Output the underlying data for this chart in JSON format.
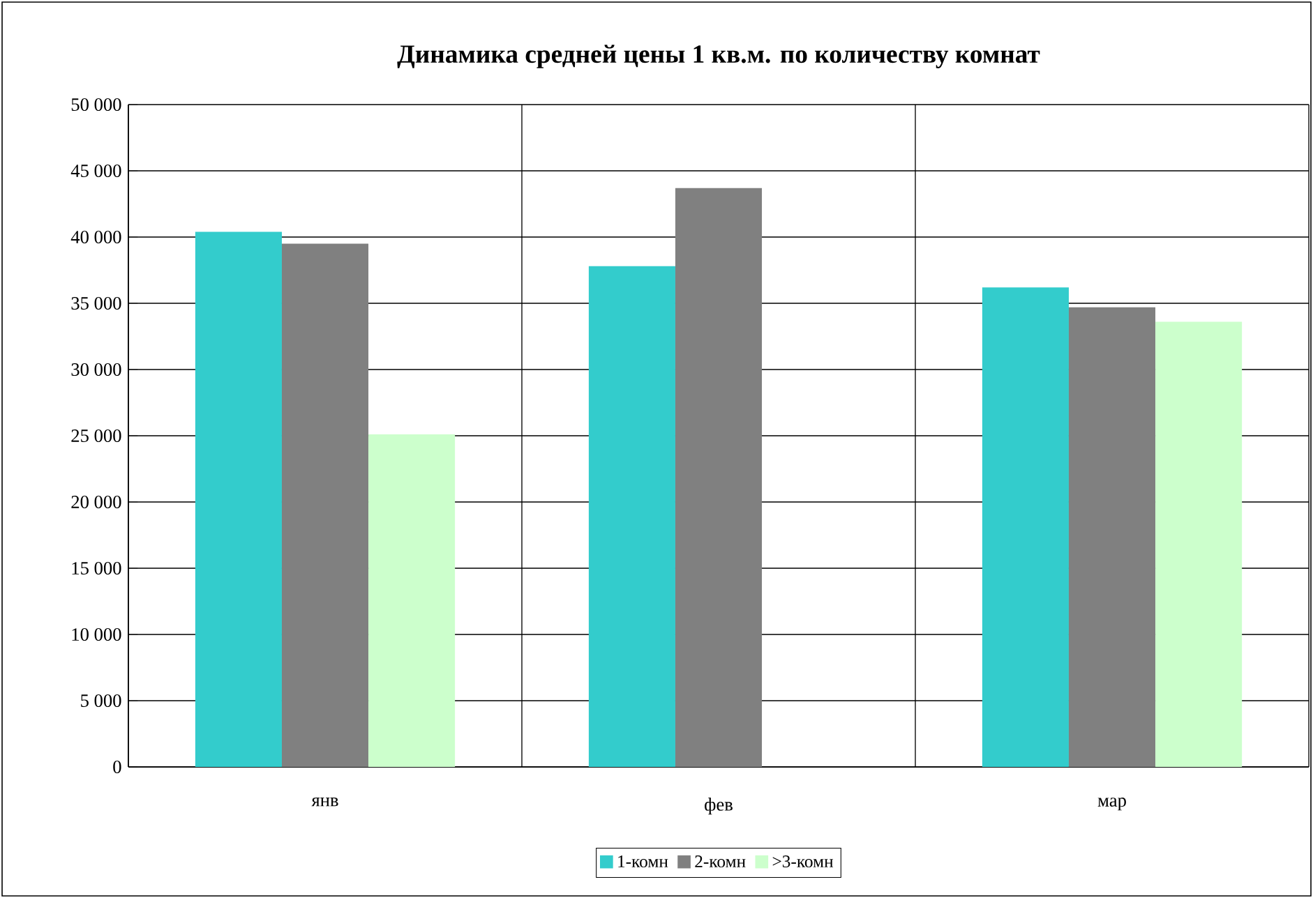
{
  "chart_data": {
    "type": "bar",
    "title": "Динамика средней цены 1 кв.м. по количеству комнат",
    "categories": [
      "янв",
      "фев",
      "мар"
    ],
    "series": [
      {
        "name": "1-комн",
        "color": "#33cccc",
        "values": [
          40400,
          37800,
          36200
        ]
      },
      {
        "name": "2-комн",
        "color": "#808080",
        "values": [
          39500,
          43700,
          34700
        ]
      },
      {
        "name": ">3-комн",
        "color": "#ccffcc",
        "values": [
          25100,
          null,
          33600
        ]
      }
    ],
    "ylim": [
      0,
      50000
    ],
    "yticks": [
      {
        "value": 0,
        "label": "0"
      },
      {
        "value": 5000,
        "label": "5 000"
      },
      {
        "value": 10000,
        "label": "10 000"
      },
      {
        "value": 15000,
        "label": "15 000"
      },
      {
        "value": 20000,
        "label": "20 000"
      },
      {
        "value": 25000,
        "label": "25 000"
      },
      {
        "value": 30000,
        "label": "30 000"
      },
      {
        "value": 35000,
        "label": "35 000"
      },
      {
        "value": 40000,
        "label": "40 000"
      },
      {
        "value": 45000,
        "label": "45 000"
      },
      {
        "value": 50000,
        "label": "50 000"
      }
    ],
    "grid": true,
    "legend": "bottom"
  }
}
